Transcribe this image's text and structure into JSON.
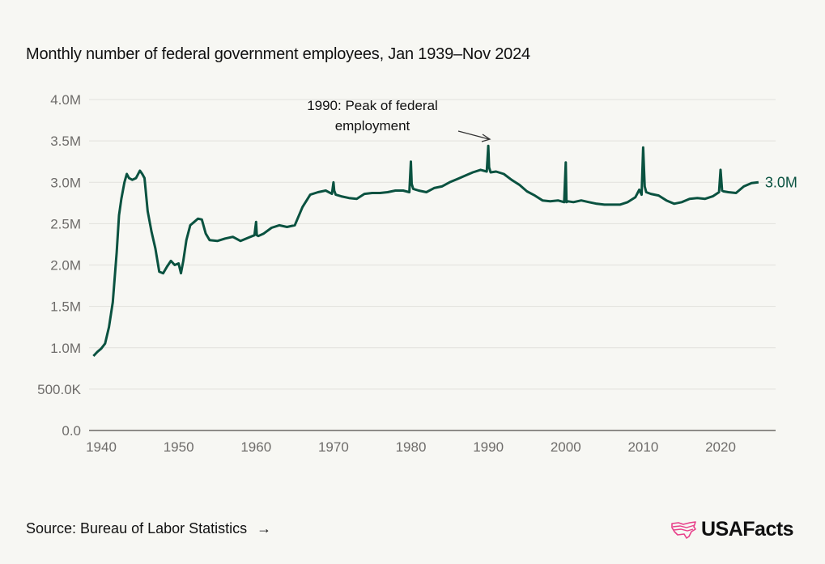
{
  "title": "Monthly number of federal government employees, Jan 1939–Nov 2024",
  "footer": {
    "source_label": "Source: Bureau of Labor Statistics",
    "arrow_icon": "→",
    "logo_text": "USAFacts"
  },
  "colors": {
    "line": "#0a5240",
    "grid": "#e2e1dc",
    "axis": "#8e8c88",
    "tick_text": "#6e6c6a",
    "logo_accent": "#e8408a"
  },
  "chart_data": {
    "type": "line",
    "title": "Monthly number of federal government employees, Jan 1939–Nov 2024",
    "xlabel": "",
    "ylabel": "",
    "xlim": [
      1938.5,
      2027
    ],
    "ylim": [
      0,
      4000000
    ],
    "grid": true,
    "x_ticks": [
      1940,
      1950,
      1960,
      1970,
      1980,
      1990,
      2000,
      2010,
      2020
    ],
    "y_ticks": [
      {
        "value": 0,
        "label": "0.0"
      },
      {
        "value": 500000,
        "label": "500.0K"
      },
      {
        "value": 1000000,
        "label": "1.0M"
      },
      {
        "value": 1500000,
        "label": "1.5M"
      },
      {
        "value": 2000000,
        "label": "2.0M"
      },
      {
        "value": 2500000,
        "label": "2.5M"
      },
      {
        "value": 3000000,
        "label": "3.0M"
      },
      {
        "value": 3500000,
        "label": "3.5M"
      },
      {
        "value": 4000000,
        "label": "4.0M"
      }
    ],
    "series": [
      {
        "name": "Federal government employees",
        "end_label": "3.0M",
        "x": [
          1939.0,
          1939.5,
          1940.0,
          1940.5,
          1941.0,
          1941.5,
          1942.0,
          1942.3,
          1942.6,
          1943.0,
          1943.3,
          1943.6,
          1944.0,
          1944.5,
          1945.0,
          1945.3,
          1945.6,
          1946.0,
          1946.5,
          1947.0,
          1947.5,
          1948.0,
          1948.5,
          1949.0,
          1949.5,
          1950.0,
          1950.3,
          1950.6,
          1951.0,
          1951.5,
          1952.0,
          1952.5,
          1953.0,
          1953.5,
          1954.0,
          1955.0,
          1956.0,
          1957.0,
          1958.0,
          1959.0,
          1959.8,
          1960.0,
          1960.1,
          1960.3,
          1961.0,
          1962.0,
          1963.0,
          1964.0,
          1965.0,
          1966.0,
          1967.0,
          1968.0,
          1969.0,
          1969.8,
          1970.0,
          1970.1,
          1970.3,
          1971.0,
          1972.0,
          1973.0,
          1974.0,
          1975.0,
          1976.0,
          1977.0,
          1978.0,
          1979.0,
          1979.8,
          1980.0,
          1980.1,
          1980.3,
          1981.0,
          1982.0,
          1983.0,
          1984.0,
          1985.0,
          1986.0,
          1987.0,
          1988.0,
          1989.0,
          1989.8,
          1990.0,
          1990.1,
          1990.3,
          1991.0,
          1992.0,
          1993.0,
          1994.0,
          1995.0,
          1996.0,
          1997.0,
          1998.0,
          1999.0,
          1999.8,
          2000.0,
          2000.1,
          2000.3,
          2001.0,
          2002.0,
          2003.0,
          2004.0,
          2005.0,
          2006.0,
          2007.0,
          2008.0,
          2009.0,
          2009.5,
          2009.8,
          2010.0,
          2010.2,
          2010.4,
          2011.0,
          2012.0,
          2013.0,
          2014.0,
          2015.0,
          2016.0,
          2017.0,
          2018.0,
          2019.0,
          2019.8,
          2020.0,
          2020.2,
          2020.4,
          2021.0,
          2022.0,
          2023.0,
          2024.0,
          2024.9
        ],
        "values": [
          900000,
          950000,
          990000,
          1050000,
          1250000,
          1550000,
          2150000,
          2600000,
          2800000,
          3000000,
          3100000,
          3050000,
          3030000,
          3050000,
          3140000,
          3100000,
          3050000,
          2650000,
          2400000,
          2200000,
          1920000,
          1900000,
          1980000,
          2050000,
          2000000,
          2020000,
          1900000,
          2050000,
          2300000,
          2480000,
          2520000,
          2560000,
          2550000,
          2380000,
          2300000,
          2290000,
          2320000,
          2340000,
          2290000,
          2330000,
          2360000,
          2520000,
          2360000,
          2350000,
          2380000,
          2450000,
          2480000,
          2460000,
          2480000,
          2700000,
          2850000,
          2880000,
          2900000,
          2860000,
          3000000,
          2900000,
          2850000,
          2830000,
          2810000,
          2800000,
          2860000,
          2870000,
          2870000,
          2880000,
          2900000,
          2900000,
          2880000,
          3250000,
          2980000,
          2920000,
          2900000,
          2880000,
          2930000,
          2950000,
          3000000,
          3040000,
          3080000,
          3120000,
          3150000,
          3130000,
          3440000,
          3180000,
          3120000,
          3130000,
          3100000,
          3030000,
          2970000,
          2890000,
          2840000,
          2780000,
          2770000,
          2780000,
          2760000,
          3240000,
          2760000,
          2770000,
          2760000,
          2780000,
          2760000,
          2740000,
          2730000,
          2730000,
          2730000,
          2760000,
          2820000,
          2910000,
          2850000,
          3420000,
          2950000,
          2880000,
          2860000,
          2840000,
          2780000,
          2740000,
          2760000,
          2800000,
          2810000,
          2800000,
          2830000,
          2880000,
          3150000,
          2900000,
          2890000,
          2880000,
          2870000,
          2950000,
          2990000,
          3000000
        ]
      }
    ],
    "annotations": [
      {
        "text_lines": [
          "1990: Peak of federal",
          "employment"
        ],
        "x": 1990,
        "y": 3440000
      }
    ]
  }
}
